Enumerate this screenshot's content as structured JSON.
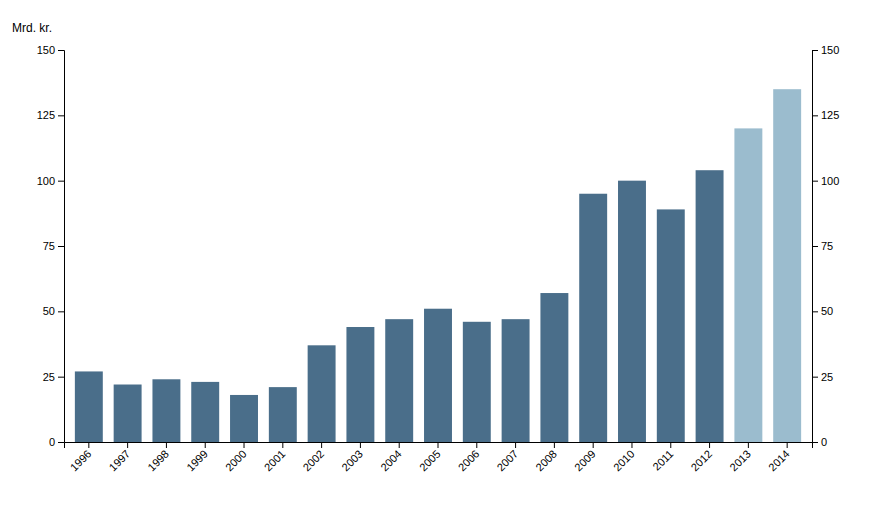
{
  "chart_data": {
    "type": "bar",
    "ylabel": "Mrd. kr.",
    "categories": [
      "1996",
      "1997",
      "1998",
      "1999",
      "2000",
      "2001",
      "2002",
      "2003",
      "2004",
      "2005",
      "2006",
      "2007",
      "2008",
      "2009",
      "2010",
      "2011",
      "2012",
      "2013",
      "2014"
    ],
    "values": [
      27,
      22,
      24,
      23,
      18,
      21,
      37,
      44,
      47,
      51,
      46,
      47,
      57,
      95,
      100,
      89,
      104,
      120,
      135
    ],
    "colors": [
      "#4a6e8a",
      "#4a6e8a",
      "#4a6e8a",
      "#4a6e8a",
      "#4a6e8a",
      "#4a6e8a",
      "#4a6e8a",
      "#4a6e8a",
      "#4a6e8a",
      "#4a6e8a",
      "#4a6e8a",
      "#4a6e8a",
      "#4a6e8a",
      "#4a6e8a",
      "#4a6e8a",
      "#4a6e8a",
      "#4a6e8a",
      "#9bbcce",
      "#9bbcce"
    ],
    "ylim": [
      0,
      150
    ],
    "yticks": [
      0,
      25,
      50,
      75,
      100,
      125,
      150
    ],
    "y2lim": [
      0,
      150
    ],
    "y2ticks": [
      0,
      25,
      50,
      75,
      100,
      125,
      150
    ],
    "grid": false
  }
}
